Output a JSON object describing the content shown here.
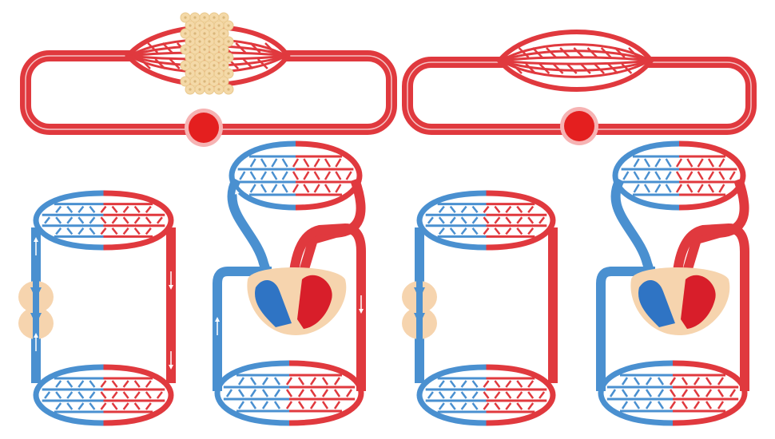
{
  "figure": {
    "panels": [
      {
        "id": "open-circulation-with-tissue",
        "vessel": "red",
        "has_tissue_cells": true,
        "has_heart": true
      },
      {
        "id": "open-circulation-plain",
        "vessel": "red",
        "has_tissue_cells": false,
        "has_heart": true
      },
      {
        "id": "closed-circulation-fish",
        "chambers": "tubular",
        "has_arrows": true
      },
      {
        "id": "closed-circulation-double-arrows",
        "chambers": "two",
        "has_arrows": true
      },
      {
        "id": "closed-circulation-fish-plain",
        "chambers": "tubular",
        "has_arrows": false
      },
      {
        "id": "closed-circulation-double-plain",
        "chambers": "two",
        "has_arrows": false
      }
    ]
  },
  "colors": {
    "arterial": "#e0393e",
    "arterial_light": "#f1a3a3",
    "venous": "#4a90d0",
    "venous_light": "#a9cdef",
    "heart_fill": "#e41f1f",
    "heart_chamber_blue": "#2f74c4",
    "heart_chamber_red": "#d81e2a",
    "tissue": "#f4d9a8",
    "tissue_cell": "#fff7d6",
    "pericardium": "#f6d4ae"
  }
}
